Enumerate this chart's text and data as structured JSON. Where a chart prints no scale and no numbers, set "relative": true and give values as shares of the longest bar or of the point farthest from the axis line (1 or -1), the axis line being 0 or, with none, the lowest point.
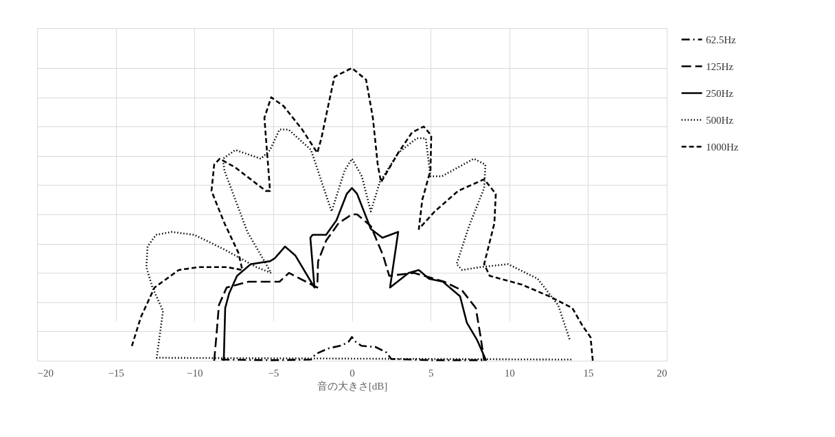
{
  "chart_data": {
    "type": "line",
    "xlabel": "音の大きさ[dB]",
    "relative": true,
    "xlim": [
      -20,
      20
    ],
    "xticks": [
      -20,
      -15,
      -10,
      -5,
      0,
      5,
      10,
      15,
      20
    ],
    "grid": true,
    "legend": "right",
    "tick_labels": "x",
    "series": [
      {
        "name": "62.5Hz",
        "color": "#000000",
        "line_style": "dashdot",
        "x": [
          -8.3,
          -5,
          -2.6,
          -2.3,
          -1.5,
          -0.6,
          -0.2,
          0,
          0.2,
          0.6,
          1.5,
          2.2,
          2.5,
          5,
          8.5
        ],
        "values": [
          0.004,
          0.002,
          0.004,
          0.023,
          0.042,
          0.053,
          0.066,
          0.081,
          0.066,
          0.051,
          0.047,
          0.028,
          0.006,
          0.002,
          0.002
        ]
      },
      {
        "name": "125Hz",
        "color": "#000000",
        "line_style": "longdash",
        "x": [
          -8.75,
          -8.6,
          -8.45,
          -7.96,
          -6.57,
          -4.6,
          -4.0,
          -2.2,
          -2.15,
          -1.64,
          -0.85,
          0,
          0.33,
          1.2,
          1.98,
          2.37,
          3.95,
          5.87,
          7.0,
          7.87,
          8.18,
          8.4
        ],
        "values": [
          0,
          0.09,
          0.19,
          0.25,
          0.27,
          0.27,
          0.3,
          0.25,
          0.34,
          0.41,
          0.47,
          0.5,
          0.5,
          0.46,
          0.36,
          0.29,
          0.3,
          0.27,
          0.24,
          0.18,
          0.08,
          0
        ]
      },
      {
        "name": "250Hz",
        "color": "#000000",
        "line_style": "solid",
        "x": [
          -8.14,
          -8.05,
          -7.8,
          -7.3,
          -6.43,
          -5.2,
          -4.9,
          -4.25,
          -3.6,
          -2.38,
          -2.64,
          -2.5,
          -1.64,
          -0.98,
          -0.33,
          0,
          0.33,
          1.2,
          1.94,
          2.94,
          2.42,
          3.6,
          4.25,
          4.9,
          5.78,
          6.87,
          7.3,
          7.96,
          8.53
        ],
        "values": [
          0,
          0.18,
          0.23,
          0.29,
          0.33,
          0.34,
          0.35,
          0.39,
          0.36,
          0.25,
          0.42,
          0.43,
          0.43,
          0.48,
          0.57,
          0.59,
          0.57,
          0.45,
          0.42,
          0.44,
          0.25,
          0.3,
          0.31,
          0.28,
          0.27,
          0.22,
          0.13,
          0.07,
          0
        ]
      },
      {
        "name": "500Hz",
        "color": "#000000",
        "line_style": "dotted",
        "x": [
          13.94,
          -12.4,
          -12.0,
          -12.67,
          -13.06,
          -12.98,
          -12.45,
          -11.45,
          -10.0,
          -8.1,
          -6.08,
          -5.13,
          -6.64,
          -8.1,
          -8.2,
          -7.4,
          -5.78,
          -5.2,
          -4.6,
          -4.03,
          -2.6,
          -1.29,
          -0.46,
          0,
          0.63,
          1.2,
          1.77,
          2.94,
          4.12,
          4.69,
          4.99,
          5.71,
          7.74,
          8.48,
          8.4,
          7.44,
          6.65,
          7.0,
          8.18,
          9.92,
          11.8,
          13.1,
          13.85
        ],
        "values": [
          0.004,
          0.01,
          0.17,
          0.25,
          0.32,
          0.39,
          0.43,
          0.44,
          0.43,
          0.38,
          0.32,
          0.3,
          0.44,
          0.65,
          0.69,
          0.72,
          0.69,
          0.72,
          0.79,
          0.79,
          0.72,
          0.51,
          0.65,
          0.69,
          0.63,
          0.51,
          0.61,
          0.71,
          0.76,
          0.76,
          0.63,
          0.63,
          0.69,
          0.67,
          0.59,
          0.46,
          0.33,
          0.31,
          0.32,
          0.33,
          0.28,
          0.19,
          0.07
        ]
      },
      {
        "name": "1000Hz",
        "color": "#000000",
        "line_style": "dashed",
        "x": [
          -13.98,
          -13.4,
          -12.54,
          -11.0,
          -9.7,
          -7.96,
          -6.96,
          -7.22,
          -8.1,
          -8.92,
          -8.75,
          -8.4,
          -7.4,
          -5.47,
          -5.2,
          -5.56,
          -5.13,
          -4.34,
          -3.16,
          -2.2,
          -1.94,
          -1.55,
          -1.11,
          0,
          0.9,
          1.33,
          1.64,
          1.85,
          2.94,
          3.82,
          4.56,
          5.04,
          4.99,
          4.47,
          4.25,
          5.26,
          6.74,
          8.4,
          9.14,
          9.05,
          8.4,
          8.75,
          10.8,
          12.54,
          14.0,
          14.64,
          15.16,
          15.3
        ],
        "values": [
          0.05,
          0.15,
          0.25,
          0.31,
          0.32,
          0.32,
          0.31,
          0.37,
          0.47,
          0.58,
          0.67,
          0.69,
          0.66,
          0.58,
          0.58,
          0.83,
          0.9,
          0.87,
          0.79,
          0.71,
          0.76,
          0.86,
          0.97,
          1.0,
          0.96,
          0.83,
          0.67,
          0.61,
          0.71,
          0.78,
          0.8,
          0.77,
          0.65,
          0.55,
          0.45,
          0.51,
          0.58,
          0.62,
          0.57,
          0.47,
          0.33,
          0.29,
          0.26,
          0.22,
          0.18,
          0.12,
          0.08,
          0
        ]
      }
    ]
  }
}
